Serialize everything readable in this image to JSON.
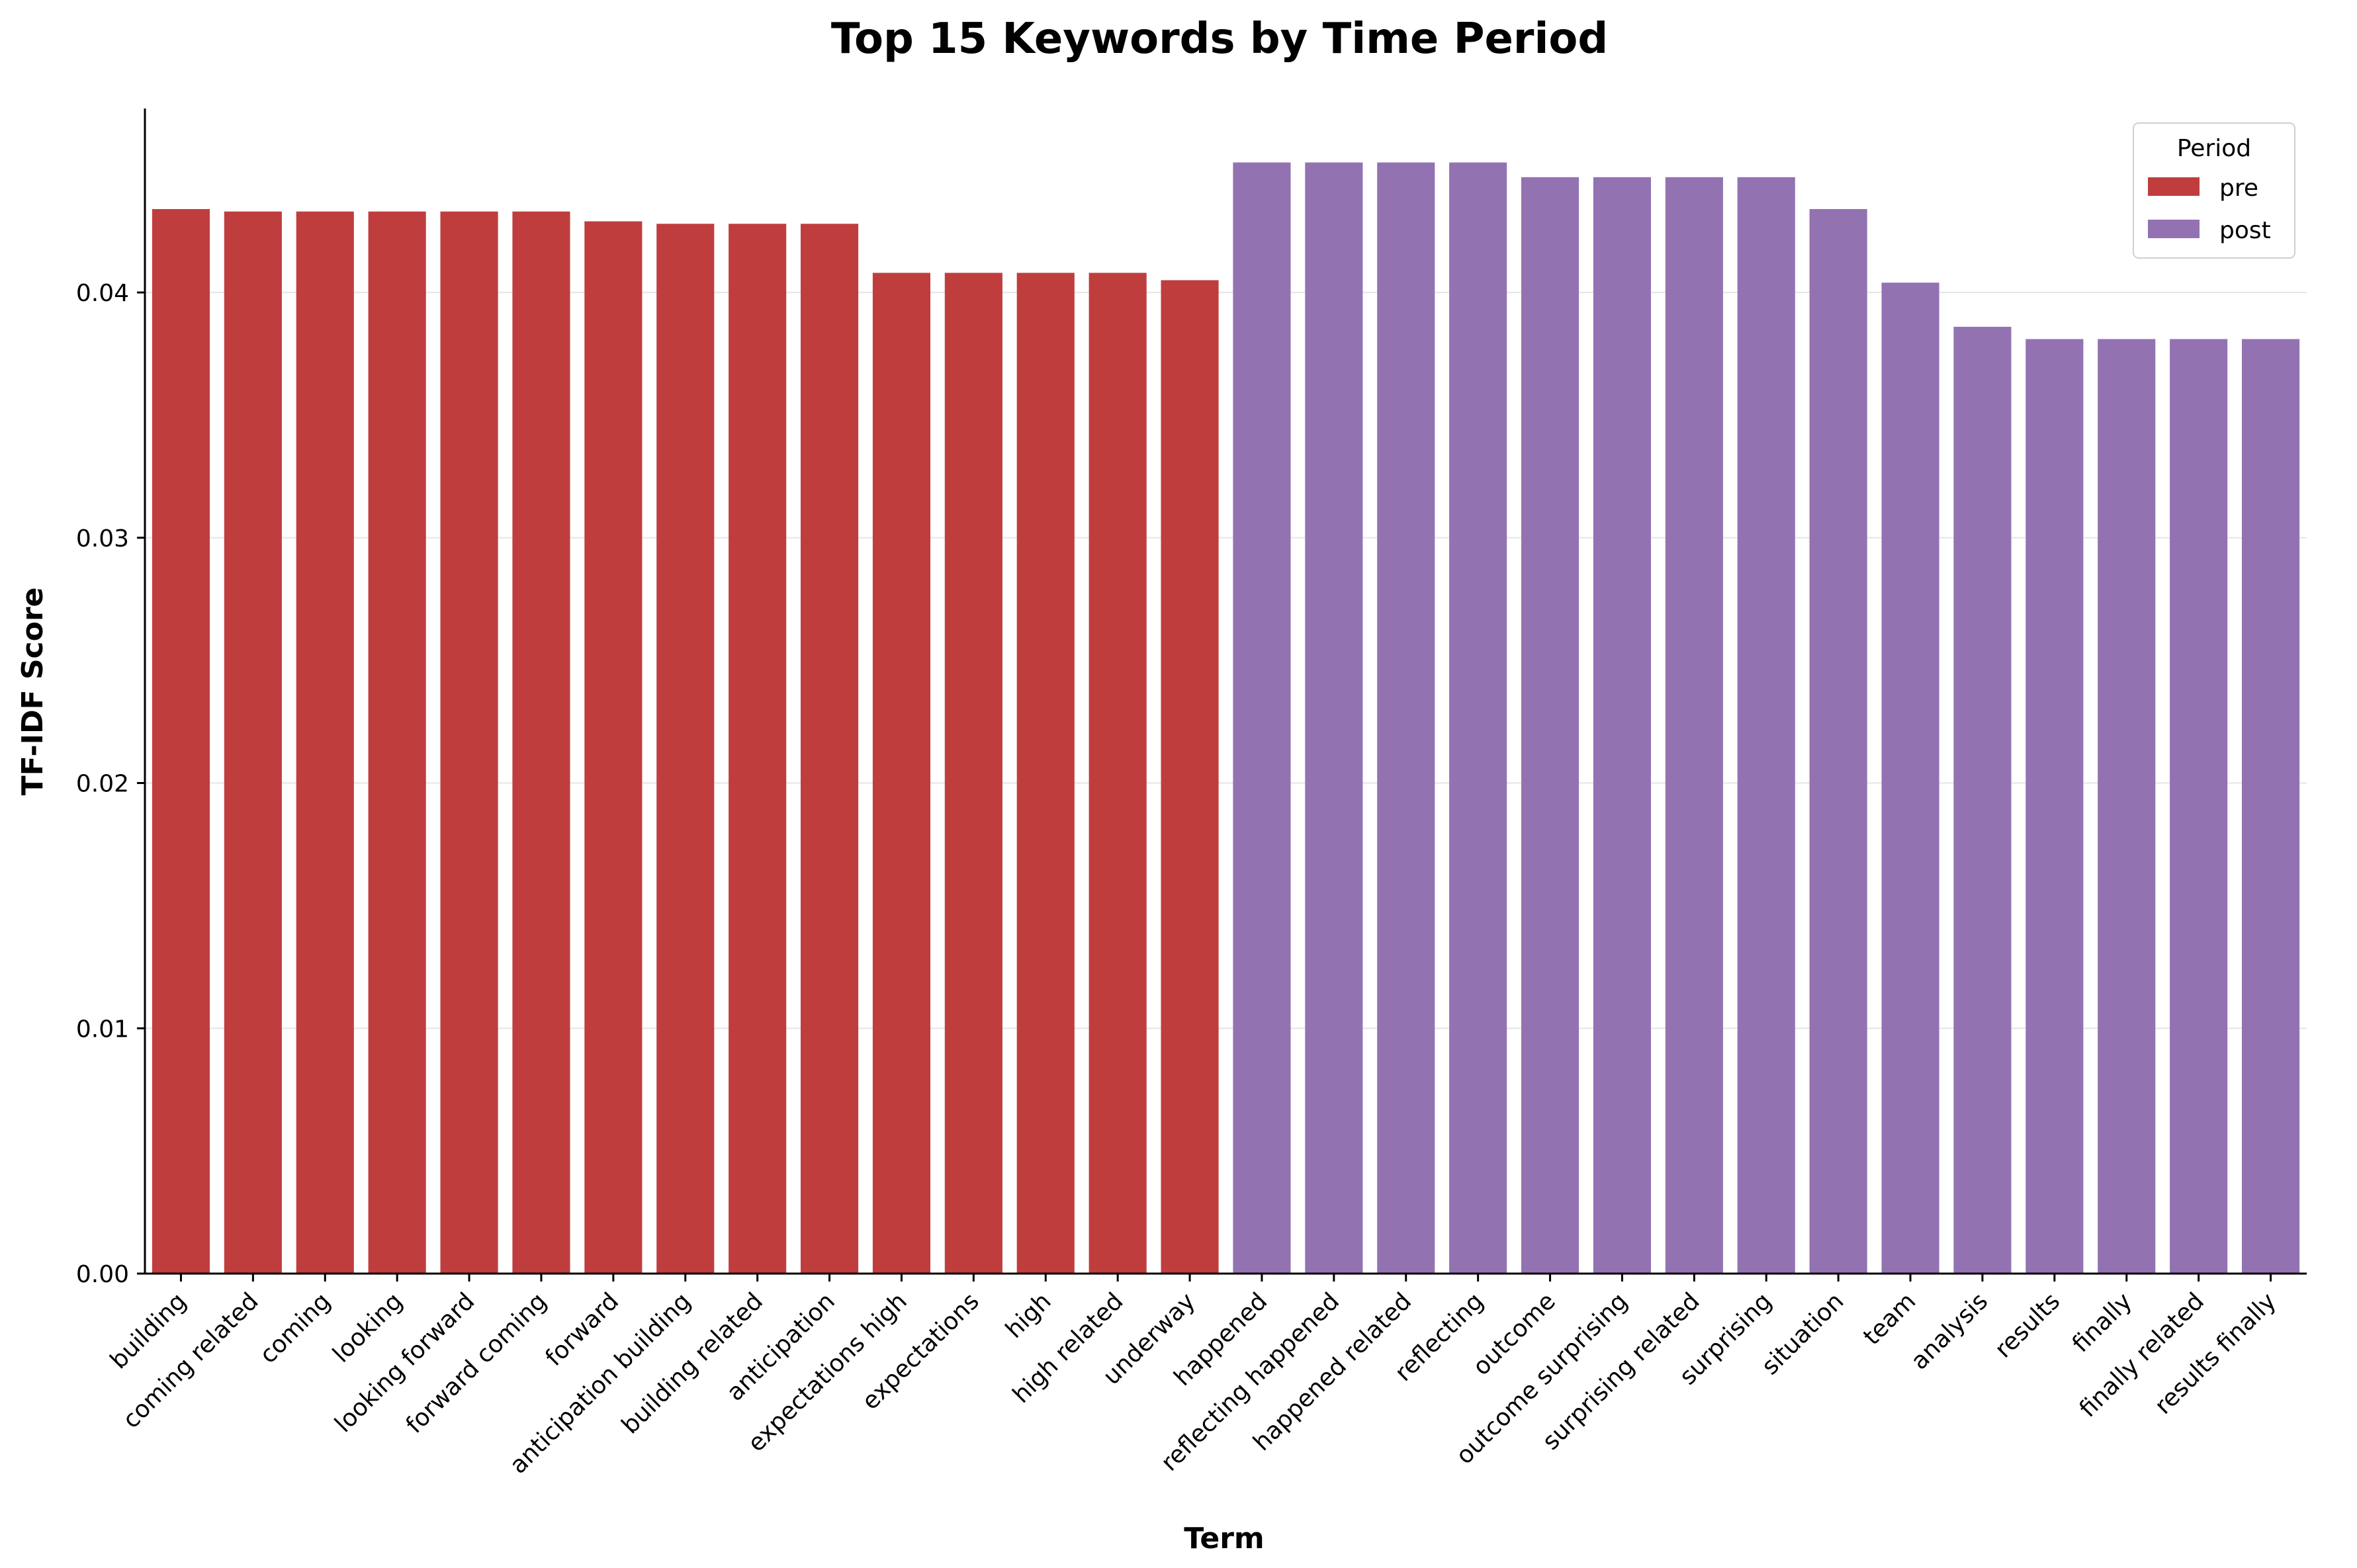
{
  "chart_data": {
    "type": "bar",
    "title": "Top 15 Keywords by Time Period",
    "xlabel": "Term",
    "ylabel": "TF-IDF Score",
    "ylim": [
      0,
      0.0475
    ],
    "yticks": [
      "0.00",
      "0.01",
      "0.02",
      "0.03",
      "0.04"
    ],
    "grid": "horizontal",
    "legend": {
      "title": "Period",
      "placement": "top-right"
    },
    "series": [
      {
        "name": "pre",
        "color": "#c03d3e",
        "categories": [
          "building",
          "coming related",
          "coming",
          "looking",
          "looking forward",
          "forward coming",
          "forward",
          "anticipation building",
          "building related",
          "anticipation",
          "expectations high",
          "expectations",
          "high",
          "high related",
          "underway"
        ],
        "values": [
          0.0434,
          0.0433,
          0.0433,
          0.0433,
          0.0433,
          0.0433,
          0.0429,
          0.0428,
          0.0428,
          0.0428,
          0.0408,
          0.0408,
          0.0408,
          0.0408,
          0.0405
        ]
      },
      {
        "name": "post",
        "color": "#9372b2",
        "categories": [
          "happened",
          "reflecting happened",
          "happened related",
          "reflecting",
          "outcome",
          "outcome surprising",
          "surprising related",
          "surprising",
          "situation",
          "team",
          "analysis",
          "results",
          "finally",
          "finally related",
          "results finally"
        ],
        "values": [
          0.0453,
          0.0453,
          0.0453,
          0.0453,
          0.0447,
          0.0447,
          0.0447,
          0.0447,
          0.0434,
          0.0404,
          0.0386,
          0.0381,
          0.0381,
          0.0381,
          0.0381
        ]
      }
    ]
  }
}
